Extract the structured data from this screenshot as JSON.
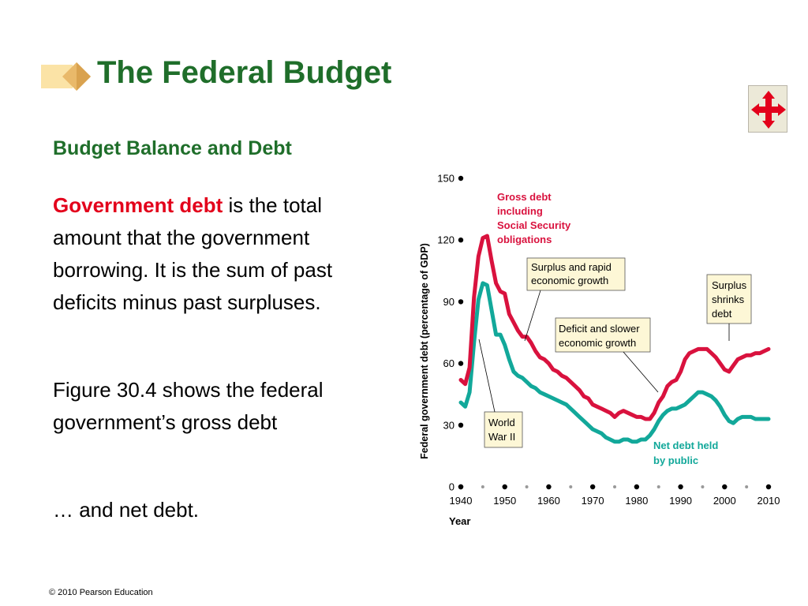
{
  "slide": {
    "title": "The Federal Budget",
    "subheading": "Budget Balance and Debt",
    "para1_term": "Government debt",
    "para1_rest": " is the total amount that the government borrowing. It is the sum of past deficits minus past surpluses.",
    "para2": "Figure 30.4 shows the federal government’s gross debt",
    "para3": "… and net debt.",
    "footer": "© 2010 Pearson Education",
    "colors": {
      "title_green": "#1f6e2a",
      "term_red": "#e3001b",
      "gross_debt": "#d9123e",
      "net_debt": "#12a89a"
    },
    "icons": {
      "logo": "diamond-arrow-logo-icon",
      "nav": "four-way-arrow-icon"
    }
  },
  "chart_data": {
    "type": "line",
    "xlabel": "Year",
    "ylabel": "Federal government debt (percentage of GDP)",
    "xlim": [
      1940,
      2010
    ],
    "ylim": [
      0,
      150
    ],
    "xticks": [
      1940,
      1950,
      1960,
      1970,
      1980,
      1990,
      2000,
      2010
    ],
    "yticks": [
      0,
      30,
      60,
      90,
      120,
      150
    ],
    "grid": false,
    "series": [
      {
        "name": "Gross debt including Social Security obligations",
        "color": "#d9123e",
        "x": [
          1940,
          1941,
          1942,
          1943,
          1944,
          1945,
          1946,
          1947,
          1948,
          1949,
          1950,
          1951,
          1952,
          1953,
          1954,
          1955,
          1956,
          1957,
          1958,
          1959,
          1960,
          1961,
          1962,
          1963,
          1964,
          1965,
          1966,
          1967,
          1968,
          1969,
          1970,
          1971,
          1972,
          1973,
          1974,
          1975,
          1976,
          1977,
          1978,
          1979,
          1980,
          1981,
          1982,
          1983,
          1984,
          1985,
          1986,
          1987,
          1988,
          1989,
          1990,
          1991,
          1992,
          1993,
          1994,
          1995,
          1996,
          1997,
          1998,
          1999,
          2000,
          2001,
          2002,
          2003,
          2004,
          2005,
          2006,
          2007,
          2008,
          2009,
          2010
        ],
        "y": [
          52,
          50,
          58,
          92,
          112,
          121,
          122,
          110,
          99,
          95,
          94,
          84,
          80,
          76,
          73,
          73,
          70,
          66,
          63,
          62,
          60,
          57,
          56,
          54,
          53,
          51,
          49,
          47,
          44,
          43,
          40,
          39,
          38,
          37,
          36,
          34,
          36,
          37,
          36,
          35,
          34,
          34,
          33,
          33,
          36,
          41,
          44,
          49,
          51,
          52,
          56,
          62,
          65,
          66,
          67,
          67,
          67,
          65,
          63,
          60,
          57,
          56,
          59,
          62,
          63,
          64,
          64,
          65,
          65,
          66,
          67
        ]
      },
      {
        "name": "Net debt held by public",
        "color": "#12a89a",
        "x": [
          1940,
          1941,
          1942,
          1943,
          1944,
          1945,
          1946,
          1947,
          1948,
          1949,
          1950,
          1951,
          1952,
          1953,
          1954,
          1955,
          1956,
          1957,
          1958,
          1959,
          1960,
          1961,
          1962,
          1963,
          1964,
          1965,
          1966,
          1967,
          1968,
          1969,
          1970,
          1971,
          1972,
          1973,
          1974,
          1975,
          1976,
          1977,
          1978,
          1979,
          1980,
          1981,
          1982,
          1983,
          1984,
          1985,
          1986,
          1987,
          1988,
          1989,
          1990,
          1991,
          1992,
          1993,
          1994,
          1995,
          1996,
          1997,
          1998,
          1999,
          2000,
          2001,
          2002,
          2003,
          2004,
          2005,
          2006,
          2007,
          2008,
          2009,
          2010
        ],
        "y": [
          41,
          39,
          46,
          70,
          91,
          99,
          98,
          86,
          74,
          74,
          69,
          62,
          56,
          54,
          53,
          51,
          49,
          48,
          46,
          45,
          44,
          43,
          42,
          41,
          40,
          38,
          36,
          34,
          32,
          30,
          28,
          27,
          26,
          24,
          23,
          22,
          22,
          23,
          23,
          22,
          22,
          23,
          23,
          25,
          28,
          32,
          35,
          37,
          38,
          38,
          39,
          40,
          42,
          44,
          46,
          46,
          45,
          44,
          42,
          39,
          35,
          32,
          31,
          33,
          34,
          34,
          34,
          33,
          33,
          33,
          33
        ]
      }
    ],
    "annotations": [
      "Gross debt including Social Security obligations",
      "Surplus and rapid economic growth",
      "Deficit and slower economic growth",
      "Surplus shrinks debt",
      "World War II",
      "Net debt held by public"
    ]
  }
}
